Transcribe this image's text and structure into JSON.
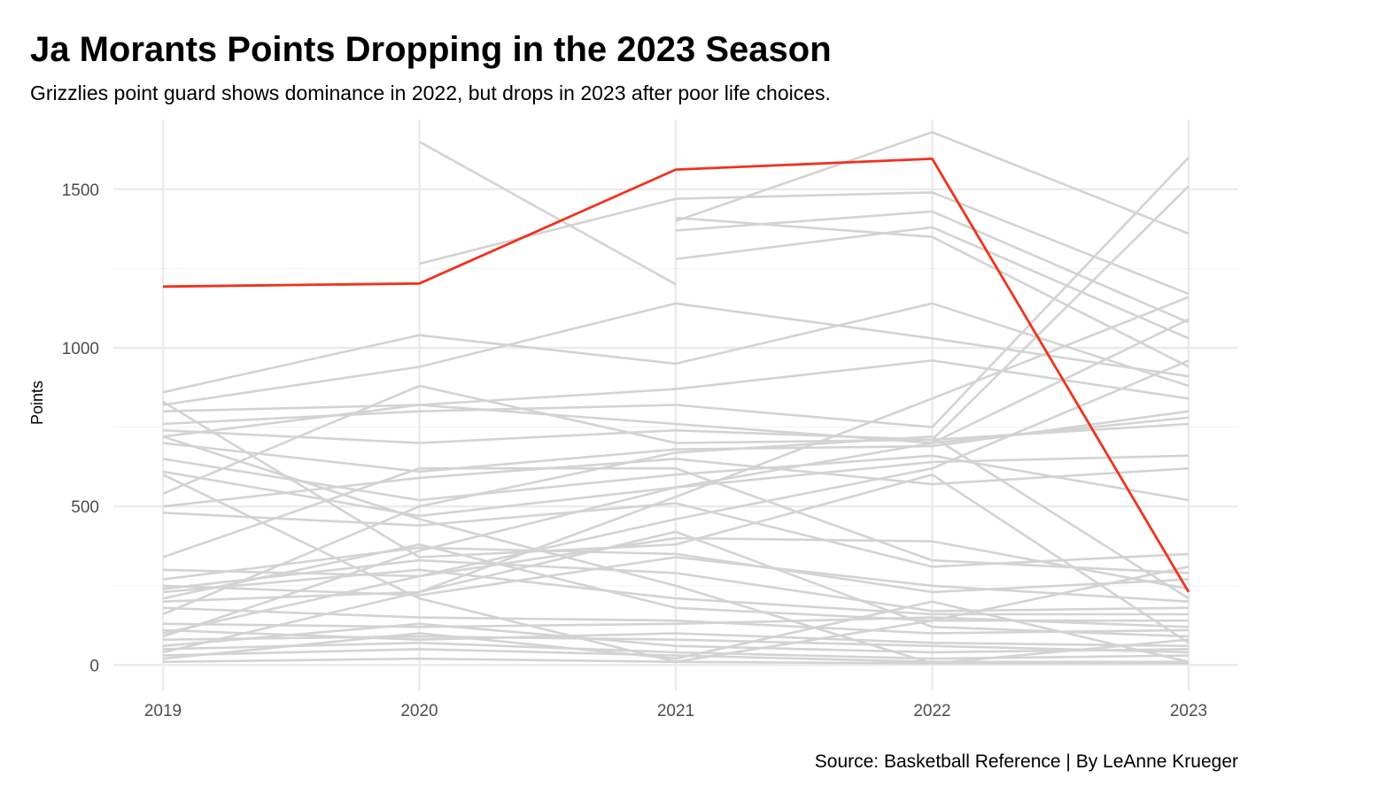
{
  "chart_data": {
    "type": "line",
    "title": "Ja Morants Points Dropping in the 2023 Season",
    "subtitle": "Grizzlies point guard shows dominance in 2022, but drops in 2023 after poor life choices.",
    "caption": "Source: Basketball Reference | By LeAnne Krueger",
    "ylabel": "Points",
    "xlabel": "",
    "x": [
      "2019",
      "2020",
      "2021",
      "2022",
      "2023"
    ],
    "ylim": [
      -80,
      1720
    ],
    "yticks": [
      0,
      500,
      1000,
      1500
    ],
    "grid": true,
    "legend": "none",
    "highlight_color": "#f0321e",
    "background_color": "#d3d3d3",
    "highlight_series": {
      "values": [
        1193,
        1203,
        1562,
        1596,
        230
      ]
    },
    "background_series": [
      {
        "values": [
          null,
          1650,
          1200,
          null,
          null
        ]
      },
      {
        "values": [
          null,
          null,
          1400,
          1680,
          1360
        ]
      },
      {
        "values": [
          null,
          1265,
          1470,
          1490,
          1170
        ]
      },
      {
        "values": [
          null,
          null,
          1370,
          1430,
          1080
        ]
      },
      {
        "values": [
          null,
          null,
          1280,
          1380,
          1030
        ]
      },
      {
        "values": [
          null,
          null,
          1410,
          1350,
          940
        ]
      },
      {
        "values": [
          860,
          1040,
          950,
          1140,
          880
        ]
      },
      {
        "values": [
          820,
          940,
          1140,
          1030,
          910
        ]
      },
      {
        "values": [
          800,
          820,
          870,
          960,
          840
        ]
      },
      {
        "values": [
          760,
          800,
          820,
          750,
          1600
        ]
      },
      {
        "values": [
          740,
          700,
          740,
          710,
          1510
        ]
      },
      {
        "values": [
          720,
          820,
          760,
          700,
          780
        ]
      },
      {
        "values": [
          700,
          610,
          680,
          690,
          800
        ]
      },
      {
        "values": [
          650,
          520,
          600,
          660,
          520
        ]
      },
      {
        "values": [
          610,
          470,
          560,
          640,
          660
        ]
      },
      {
        "values": [
          540,
          880,
          700,
          710,
          760
        ]
      },
      {
        "values": [
          500,
          590,
          650,
          570,
          620
        ]
      },
      {
        "values": [
          480,
          440,
          510,
          310,
          350
        ]
      },
      {
        "values": [
          340,
          620,
          620,
          330,
          290
        ]
      },
      {
        "values": [
          300,
          280,
          400,
          390,
          240
        ]
      },
      {
        "values": [
          270,
          370,
          350,
          230,
          270
        ]
      },
      {
        "values": [
          250,
          220,
          340,
          250,
          200
        ]
      },
      {
        "values": [
          240,
          330,
          290,
          170,
          180
        ]
      },
      {
        "values": [
          230,
          300,
          210,
          160,
          160
        ]
      },
      {
        "values": [
          210,
          380,
          180,
          140,
          140
        ]
      },
      {
        "values": [
          200,
          230,
          420,
          120,
          90
        ]
      },
      {
        "values": [
          180,
          150,
          140,
          100,
          110
        ]
      },
      {
        "values": [
          160,
          500,
          670,
          720,
          210
        ]
      },
      {
        "values": [
          130,
          120,
          130,
          150,
          120
        ]
      },
      {
        "values": [
          110,
          80,
          100,
          70,
          60
        ]
      },
      {
        "values": [
          100,
          280,
          460,
          620,
          960
        ]
      },
      {
        "values": [
          90,
          360,
          560,
          700,
          1090
        ]
      },
      {
        "values": [
          80,
          90,
          80,
          60,
          40
        ]
      },
      {
        "values": [
          60,
          130,
          60,
          40,
          50
        ]
      },
      {
        "values": [
          50,
          70,
          40,
          20,
          30
        ]
      },
      {
        "values": [
          40,
          230,
          530,
          840,
          1160
        ]
      },
      {
        "values": [
          30,
          50,
          30,
          10,
          10
        ]
      },
      {
        "values": [
          20,
          100,
          20,
          200,
          10
        ]
      },
      {
        "values": [
          10,
          20,
          10,
          140,
          310
        ]
      },
      {
        "values": [
          600,
          210,
          10,
          5,
          5
        ]
      },
      {
        "values": [
          830,
          340,
          380,
          600,
          70
        ]
      },
      {
        "values": [
          720,
          460,
          250,
          5,
          80
        ]
      }
    ]
  }
}
